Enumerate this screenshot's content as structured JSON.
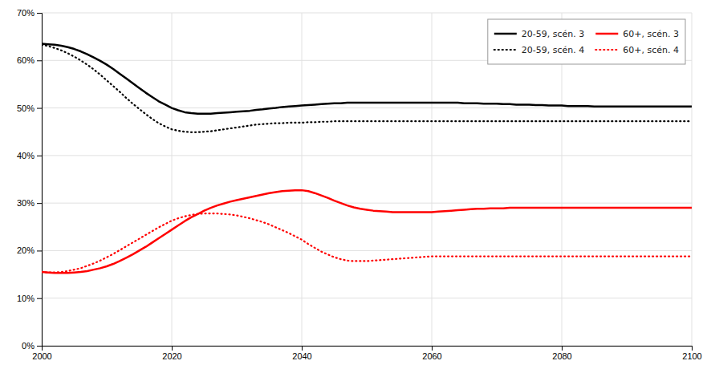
{
  "chart_data": {
    "type": "line",
    "x": [
      2000,
      2001,
      2002,
      2003,
      2004,
      2005,
      2006,
      2007,
      2008,
      2009,
      2010,
      2011,
      2012,
      2013,
      2014,
      2015,
      2016,
      2017,
      2018,
      2019,
      2020,
      2021,
      2022,
      2023,
      2024,
      2025,
      2026,
      2027,
      2028,
      2029,
      2030,
      2031,
      2032,
      2033,
      2034,
      2035,
      2036,
      2037,
      2038,
      2039,
      2040,
      2041,
      2042,
      2043,
      2044,
      2045,
      2046,
      2047,
      2048,
      2049,
      2050,
      2051,
      2052,
      2053,
      2054,
      2055,
      2056,
      2057,
      2058,
      2059,
      2060,
      2061,
      2062,
      2063,
      2064,
      2065,
      2066,
      2067,
      2068,
      2069,
      2070,
      2071,
      2072,
      2073,
      2074,
      2075,
      2076,
      2077,
      2078,
      2079,
      2080,
      2081,
      2082,
      2083,
      2084,
      2085,
      2086,
      2087,
      2088,
      2089,
      2090,
      2091,
      2092,
      2093,
      2094,
      2095,
      2096,
      2097,
      2098,
      2099,
      2100
    ],
    "series": [
      {
        "name": "20-59, scén. 3",
        "color": "#000000",
        "line_style": "solid",
        "values": [
          0.635,
          0.634,
          0.633,
          0.631,
          0.628,
          0.624,
          0.619,
          0.613,
          0.606,
          0.599,
          0.591,
          0.582,
          0.572,
          0.562,
          0.552,
          0.542,
          0.532,
          0.523,
          0.514,
          0.507,
          0.5,
          0.495,
          0.491,
          0.489,
          0.488,
          0.488,
          0.488,
          0.489,
          0.49,
          0.491,
          0.492,
          0.493,
          0.494,
          0.496,
          0.497,
          0.499,
          0.5,
          0.502,
          0.503,
          0.504,
          0.505,
          0.506,
          0.507,
          0.508,
          0.509,
          0.51,
          0.51,
          0.511,
          0.511,
          0.511,
          0.511,
          0.511,
          0.511,
          0.511,
          0.511,
          0.511,
          0.511,
          0.511,
          0.511,
          0.511,
          0.511,
          0.511,
          0.511,
          0.511,
          0.511,
          0.51,
          0.51,
          0.51,
          0.509,
          0.509,
          0.509,
          0.508,
          0.508,
          0.507,
          0.507,
          0.507,
          0.506,
          0.506,
          0.505,
          0.505,
          0.505,
          0.504,
          0.504,
          0.504,
          0.504,
          0.503,
          0.503,
          0.503,
          0.503,
          0.503,
          0.503,
          0.503,
          0.503,
          0.503,
          0.503,
          0.503,
          0.503,
          0.503,
          0.503,
          0.503,
          0.503
        ]
      },
      {
        "name": "60+, scén. 3",
        "color": "#ff0000",
        "line_style": "solid",
        "values": [
          0.155,
          0.154,
          0.153,
          0.153,
          0.153,
          0.154,
          0.155,
          0.157,
          0.16,
          0.163,
          0.167,
          0.172,
          0.178,
          0.185,
          0.192,
          0.2,
          0.208,
          0.217,
          0.226,
          0.235,
          0.244,
          0.253,
          0.262,
          0.27,
          0.277,
          0.284,
          0.29,
          0.295,
          0.299,
          0.303,
          0.306,
          0.309,
          0.312,
          0.315,
          0.318,
          0.321,
          0.323,
          0.325,
          0.326,
          0.327,
          0.327,
          0.325,
          0.321,
          0.316,
          0.311,
          0.305,
          0.3,
          0.295,
          0.291,
          0.288,
          0.286,
          0.284,
          0.283,
          0.282,
          0.281,
          0.281,
          0.281,
          0.281,
          0.281,
          0.281,
          0.281,
          0.282,
          0.283,
          0.284,
          0.285,
          0.286,
          0.287,
          0.288,
          0.288,
          0.289,
          0.289,
          0.289,
          0.29,
          0.29,
          0.29,
          0.29,
          0.29,
          0.29,
          0.29,
          0.29,
          0.29,
          0.29,
          0.29,
          0.29,
          0.29,
          0.29,
          0.29,
          0.29,
          0.29,
          0.29,
          0.29,
          0.29,
          0.29,
          0.29,
          0.29,
          0.29,
          0.29,
          0.29,
          0.29,
          0.29,
          0.29
        ]
      },
      {
        "name": "20-59, scén. 4",
        "color": "#000000",
        "line_style": "dotted",
        "values": [
          0.633,
          0.63,
          0.626,
          0.621,
          0.615,
          0.608,
          0.6,
          0.591,
          0.581,
          0.57,
          0.558,
          0.546,
          0.534,
          0.521,
          0.509,
          0.498,
          0.487,
          0.477,
          0.468,
          0.461,
          0.455,
          0.452,
          0.45,
          0.449,
          0.449,
          0.45,
          0.451,
          0.453,
          0.455,
          0.457,
          0.459,
          0.461,
          0.463,
          0.465,
          0.466,
          0.467,
          0.468,
          0.468,
          0.469,
          0.469,
          0.469,
          0.47,
          0.47,
          0.471,
          0.471,
          0.472,
          0.472,
          0.472,
          0.472,
          0.472,
          0.472,
          0.472,
          0.472,
          0.472,
          0.472,
          0.472,
          0.472,
          0.472,
          0.472,
          0.472,
          0.472,
          0.472,
          0.472,
          0.472,
          0.472,
          0.472,
          0.472,
          0.472,
          0.472,
          0.472,
          0.472,
          0.472,
          0.472,
          0.472,
          0.472,
          0.472,
          0.472,
          0.472,
          0.472,
          0.472,
          0.472,
          0.472,
          0.472,
          0.472,
          0.472,
          0.472,
          0.472,
          0.472,
          0.472,
          0.472,
          0.472,
          0.472,
          0.472,
          0.472,
          0.472,
          0.472,
          0.472,
          0.472,
          0.472,
          0.472,
          0.472
        ]
      },
      {
        "name": "60+, scén. 4",
        "color": "#ff0000",
        "line_style": "dotted",
        "values": [
          0.155,
          0.154,
          0.154,
          0.155,
          0.157,
          0.16,
          0.163,
          0.168,
          0.173,
          0.179,
          0.186,
          0.193,
          0.201,
          0.209,
          0.217,
          0.225,
          0.233,
          0.241,
          0.249,
          0.256,
          0.263,
          0.268,
          0.272,
          0.275,
          0.277,
          0.278,
          0.278,
          0.278,
          0.277,
          0.276,
          0.274,
          0.271,
          0.268,
          0.264,
          0.26,
          0.255,
          0.249,
          0.243,
          0.237,
          0.23,
          0.223,
          0.214,
          0.206,
          0.198,
          0.192,
          0.186,
          0.182,
          0.179,
          0.178,
          0.178,
          0.178,
          0.179,
          0.18,
          0.181,
          0.182,
          0.183,
          0.184,
          0.185,
          0.186,
          0.187,
          0.188,
          0.188,
          0.188,
          0.188,
          0.188,
          0.188,
          0.188,
          0.188,
          0.188,
          0.188,
          0.188,
          0.188,
          0.188,
          0.188,
          0.188,
          0.188,
          0.188,
          0.188,
          0.188,
          0.188,
          0.188,
          0.188,
          0.188,
          0.188,
          0.188,
          0.188,
          0.188,
          0.188,
          0.188,
          0.188,
          0.188,
          0.188,
          0.188,
          0.188,
          0.188,
          0.188,
          0.188,
          0.188,
          0.188,
          0.188,
          0.188
        ]
      }
    ],
    "xlim": [
      2000,
      2100
    ],
    "xticks": [
      2000,
      2020,
      2040,
      2060,
      2080,
      2100
    ],
    "ylim": [
      0.0,
      0.7
    ],
    "yticks": [
      {
        "value": 0.0,
        "label": "0%"
      },
      {
        "value": 0.1,
        "label": "10%"
      },
      {
        "value": 0.2,
        "label": "20%"
      },
      {
        "value": 0.3,
        "label": "30%"
      },
      {
        "value": 0.4,
        "label": "40%"
      },
      {
        "value": 0.5,
        "label": "50%"
      },
      {
        "value": 0.6,
        "label": "60%"
      },
      {
        "value": 0.7,
        "label": "70%"
      }
    ],
    "grid": true,
    "legend": "upper right"
  }
}
